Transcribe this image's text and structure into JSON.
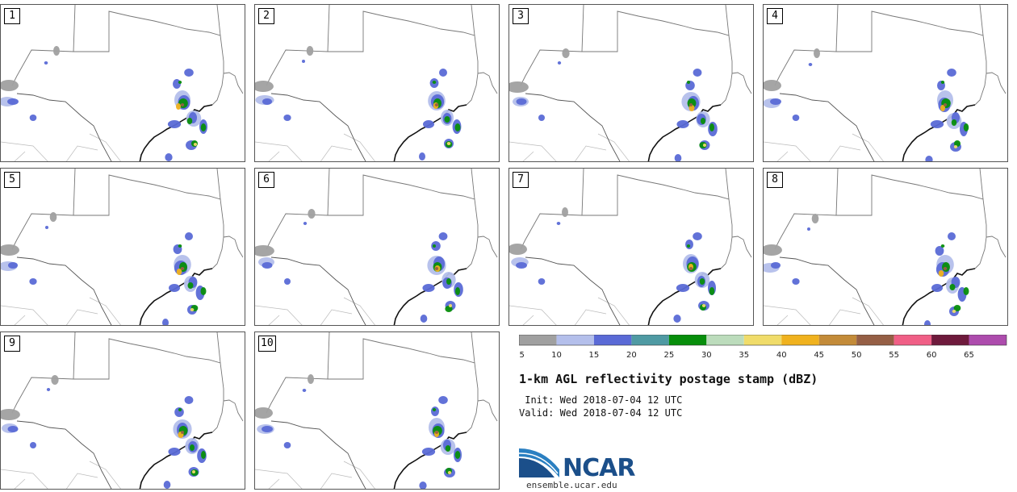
{
  "panels": [
    {
      "number": "1"
    },
    {
      "number": "2"
    },
    {
      "number": "3"
    },
    {
      "number": "4"
    },
    {
      "number": "5"
    },
    {
      "number": "6"
    },
    {
      "number": "7"
    },
    {
      "number": "8"
    },
    {
      "number": "9"
    },
    {
      "number": "10"
    }
  ],
  "colorbar": {
    "colors": [
      "#a0a0a0",
      "#b4bfeb",
      "#5a6ad6",
      "#4f9aa3",
      "#078e0b",
      "#bcdcbc",
      "#f0dc6a",
      "#f0b21e",
      "#c38b39",
      "#955f45",
      "#f05f86",
      "#6e1a3c",
      "#ad4cad"
    ],
    "tick_labels": [
      "5",
      "10",
      "15",
      "20",
      "25",
      "30",
      "35",
      "40",
      "45",
      "50",
      "55",
      "60",
      "65"
    ]
  },
  "title": "1-km AGL reflectivity postage stamp (dBZ)",
  "init": " Init: Wed 2018-07-04 12 UTC",
  "valid": "Valid: Wed 2018-07-04 12 UTC",
  "logo": {
    "text": "NCAR",
    "website": "ensemble.ucar.edu",
    "brand_color": "#1b4f8a"
  }
}
